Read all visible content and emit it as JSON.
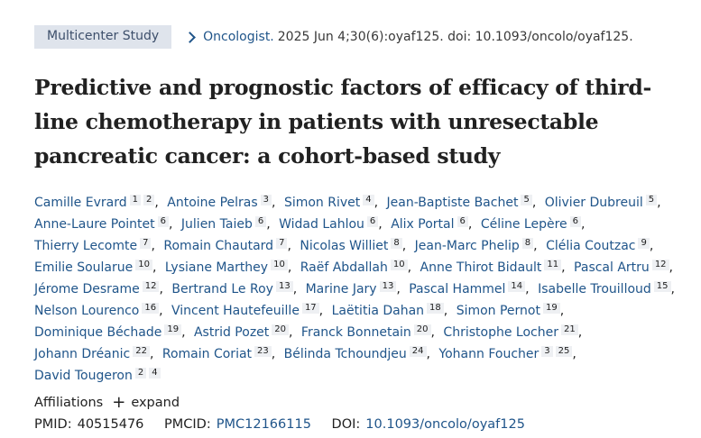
{
  "badge": "Multicenter Study",
  "citation": {
    "journal": "Oncologist.",
    "details": "2025 Jun 4;30(6):oyaf125. doi: 10.1093/oncolo/oyaf125."
  },
  "title": "Predictive and prognostic factors of efficacy of third-line chemotherapy in patients with unresectable pancreatic cancer: a cohort-based study",
  "authors": [
    {
      "name": "Camille Evrard",
      "aff": [
        "1",
        "2"
      ]
    },
    {
      "name": "Antoine Pelras",
      "aff": [
        "3"
      ]
    },
    {
      "name": "Simon Rivet",
      "aff": [
        "4"
      ]
    },
    {
      "name": "Jean-Baptiste Bachet",
      "aff": [
        "5"
      ]
    },
    {
      "name": "Olivier Dubreuil",
      "aff": [
        "5"
      ]
    },
    {
      "name": "Anne-Laure Pointet",
      "aff": [
        "6"
      ]
    },
    {
      "name": "Julien Taieb",
      "aff": [
        "6"
      ]
    },
    {
      "name": "Widad Lahlou",
      "aff": [
        "6"
      ]
    },
    {
      "name": "Alix Portal",
      "aff": [
        "6"
      ]
    },
    {
      "name": "Céline Lepère",
      "aff": [
        "6"
      ]
    },
    {
      "name": "Thierry Lecomte",
      "aff": [
        "7"
      ]
    },
    {
      "name": "Romain Chautard",
      "aff": [
        "7"
      ]
    },
    {
      "name": "Nicolas Williet",
      "aff": [
        "8"
      ]
    },
    {
      "name": "Jean-Marc Phelip",
      "aff": [
        "8"
      ]
    },
    {
      "name": "Clélia Coutzac",
      "aff": [
        "9"
      ]
    },
    {
      "name": "Emilie Soularue",
      "aff": [
        "10"
      ]
    },
    {
      "name": "Lysiane Marthey",
      "aff": [
        "10"
      ]
    },
    {
      "name": "Raëf Abdallah",
      "aff": [
        "10"
      ]
    },
    {
      "name": "Anne Thirot Bidault",
      "aff": [
        "11"
      ]
    },
    {
      "name": "Pascal Artru",
      "aff": [
        "12"
      ]
    },
    {
      "name": "Jérome Desrame",
      "aff": [
        "12"
      ]
    },
    {
      "name": "Bertrand Le Roy",
      "aff": [
        "13"
      ]
    },
    {
      "name": "Marine Jary",
      "aff": [
        "13"
      ]
    },
    {
      "name": "Pascal Hammel",
      "aff": [
        "14"
      ]
    },
    {
      "name": "Isabelle Trouilloud",
      "aff": [
        "15"
      ]
    },
    {
      "name": "Nelson Lourenco",
      "aff": [
        "16"
      ]
    },
    {
      "name": "Vincent Hautefeuille",
      "aff": [
        "17"
      ]
    },
    {
      "name": "Laëtitia Dahan",
      "aff": [
        "18"
      ]
    },
    {
      "name": "Simon Pernot",
      "aff": [
        "19"
      ]
    },
    {
      "name": "Dominique Béchade",
      "aff": [
        "19"
      ]
    },
    {
      "name": "Astrid Pozet",
      "aff": [
        "20"
      ]
    },
    {
      "name": "Franck Bonnetain",
      "aff": [
        "20"
      ]
    },
    {
      "name": "Christophe Locher",
      "aff": [
        "21"
      ]
    },
    {
      "name": "Johann Dréanic",
      "aff": [
        "22"
      ]
    },
    {
      "name": "Romain Coriat",
      "aff": [
        "23"
      ]
    },
    {
      "name": "Bélinda Tchoundjeu",
      "aff": [
        "24"
      ]
    },
    {
      "name": "Yohann Foucher",
      "aff": [
        "3",
        "25"
      ]
    },
    {
      "name": "David Tougeron",
      "aff": [
        "2",
        "4"
      ]
    }
  ],
  "affiliations": {
    "label": "Affiliations",
    "expand_label": "expand"
  },
  "ids": {
    "pmid_label": "PMID:",
    "pmid": "40515476",
    "pmcid_label": "PMCID:",
    "pmcid": "PMC12166115",
    "doi_label": "DOI:",
    "doi": "10.1093/oncolo/oyaf125"
  }
}
